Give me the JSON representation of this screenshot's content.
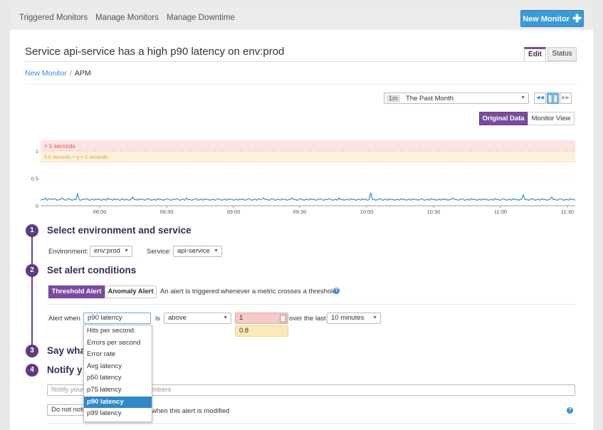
{
  "nav": {
    "tabs": [
      "Triggered Monitors",
      "Manage Monitors",
      "Manage Downtime"
    ],
    "new_monitor_label": "New Monitor"
  },
  "header": {
    "title": "Service api-service has a high p90 latency on env:prod",
    "tab_edit": "Edit",
    "tab_status": "Status"
  },
  "breadcrumb": {
    "link": "New Monitor",
    "sep": "/",
    "current": "APM"
  },
  "time": {
    "badge": "1m",
    "label": "The Past Month"
  },
  "view": {
    "original": "Original Data",
    "monitor": "Monitor View"
  },
  "chart_data": {
    "type": "line",
    "y_ticks": [
      "1",
      "0.5",
      "0"
    ],
    "x_ticks": [
      "08:00",
      "08:30",
      "09:00",
      "09:30",
      "10:00",
      "10:30",
      "11:00",
      "11:30"
    ],
    "ylim": [
      0,
      1.2
    ],
    "alert_band_label": "> 1 seconds",
    "warn_band_label": "0.8 seconds < y < 1 seconds",
    "colors": {
      "line": "#3a8fc6",
      "alert_band": "#fde3e3",
      "warn_band": "#fdf1dc"
    },
    "series": [
      {
        "values": [
          0.1,
          0.12,
          0.11,
          0.14,
          0.1,
          0.13,
          0.12,
          0.11,
          0.13,
          0.12,
          0.1,
          0.11,
          0.12,
          0.14,
          0.11,
          0.1,
          0.12,
          0.13,
          0.11,
          0.1,
          0.12,
          0.11,
          0.22,
          0.11,
          0.1,
          0.12,
          0.11,
          0.13,
          0.12,
          0.1,
          0.11,
          0.12,
          0.1,
          0.13,
          0.11,
          0.12,
          0.1,
          0.11,
          0.12,
          0.1,
          0.14,
          0.11,
          0.12,
          0.1,
          0.13,
          0.11,
          0.12,
          0.1,
          0.11,
          0.13,
          0.1,
          0.12,
          0.11,
          0.1,
          0.12,
          0.16,
          0.11,
          0.12,
          0.1,
          0.13,
          0.11,
          0.12,
          0.1,
          0.11,
          0.13,
          0.12,
          0.1,
          0.11,
          0.12,
          0.1,
          0.13,
          0.11,
          0.12,
          0.1,
          0.11,
          0.12,
          0.13,
          0.11,
          0.1,
          0.12,
          0.11,
          0.13,
          0.12,
          0.1,
          0.11,
          0.12,
          0.1,
          0.14,
          0.11,
          0.12,
          0.1,
          0.11,
          0.12,
          0.13,
          0.1,
          0.11,
          0.12,
          0.1,
          0.13,
          0.11,
          0.12,
          0.1,
          0.11,
          0.12,
          0.1,
          0.11,
          0.13,
          0.12,
          0.1,
          0.11,
          0.12,
          0.1,
          0.13,
          0.11,
          0.12,
          0.1,
          0.11,
          0.12,
          0.1,
          0.13,
          0.11,
          0.12,
          0.1,
          0.11,
          0.13,
          0.12,
          0.1,
          0.11,
          0.12,
          0.1,
          0.13,
          0.11,
          0.12,
          0.14,
          0.11,
          0.12,
          0.1,
          0.11,
          0.13,
          0.12,
          0.1,
          0.11,
          0.12,
          0.1,
          0.13,
          0.11,
          0.12,
          0.1,
          0.11,
          0.12,
          0.14,
          0.11,
          0.12,
          0.1,
          0.11,
          0.13,
          0.12,
          0.1,
          0.11,
          0.12,
          0.1,
          0.13,
          0.11,
          0.12,
          0.1,
          0.11,
          0.12,
          0.13,
          0.11,
          0.1,
          0.12,
          0.11,
          0.13,
          0.12,
          0.1,
          0.11,
          0.12,
          0.1,
          0.14,
          0.11,
          0.12,
          0.1,
          0.11,
          0.12,
          0.1,
          0.13,
          0.11,
          0.12,
          0.1,
          0.11,
          0.12,
          0.1,
          0.13,
          0.11,
          0.12,
          0.1,
          0.11,
          0.24,
          0.11,
          0.12,
          0.1,
          0.11,
          0.13,
          0.12,
          0.1,
          0.11,
          0.12,
          0.1,
          0.13,
          0.11,
          0.12,
          0.1,
          0.11,
          0.12,
          0.1,
          0.13,
          0.11,
          0.12,
          0.1,
          0.11,
          0.12,
          0.1,
          0.13,
          0.11,
          0.12,
          0.1,
          0.11,
          0.13,
          0.12,
          0.1,
          0.11,
          0.12,
          0.1,
          0.13,
          0.11,
          0.12,
          0.1,
          0.11,
          0.12,
          0.1,
          0.13,
          0.11,
          0.12,
          0.1,
          0.11,
          0.12,
          0.14,
          0.11,
          0.12,
          0.1,
          0.11,
          0.13,
          0.12,
          0.1,
          0.11,
          0.12,
          0.1,
          0.13,
          0.11,
          0.12,
          0.1,
          0.11,
          0.12,
          0.1,
          0.13,
          0.11,
          0.12,
          0.1,
          0.11,
          0.12,
          0.1,
          0.13,
          0.11,
          0.12,
          0.1,
          0.11,
          0.13,
          0.12,
          0.1,
          0.11,
          0.12,
          0.1,
          0.13,
          0.11,
          0.12,
          0.1,
          0.11,
          0.12,
          0.2,
          0.11,
          0.12,
          0.1,
          0.11,
          0.13,
          0.12,
          0.1,
          0.11,
          0.12,
          0.1,
          0.13,
          0.11,
          0.12,
          0.1,
          0.11,
          0.12,
          0.16,
          0.11,
          0.12,
          0.1,
          0.11,
          0.13,
          0.12,
          0.1,
          0.11,
          0.12,
          0.1,
          0.13,
          0.11,
          0.12,
          0.1
        ]
      }
    ]
  },
  "steps": [
    {
      "num": "1",
      "title": "Select environment and service"
    },
    {
      "num": "2",
      "title": "Set alert conditions"
    },
    {
      "num": "3",
      "title": "Say wha"
    },
    {
      "num": "4",
      "title": "Notify y"
    }
  ],
  "env": {
    "label": "Environment:",
    "value": "env:prod"
  },
  "service": {
    "label": "Service:",
    "value": "api-service"
  },
  "alert_type": {
    "threshold": "Threshold Alert",
    "anomaly": "Anomaly Alert",
    "desc": "An alert is triggered whenever a metric crosses a threshold."
  },
  "alert_when": {
    "label": "Alert when",
    "metric": "p90 latency",
    "is_label": "is",
    "comparator": "above",
    "alert_threshold": "1",
    "warn_threshold": "0.8",
    "over_label": "over the last",
    "window": "10 minutes"
  },
  "metric_options": [
    "Hits per second",
    "Errors per second",
    "Error rate",
    "Avg latency",
    "p50 latency",
    "p75 latency",
    "p90 latency",
    "p99 latency"
  ],
  "metric_selected": "p90 latency",
  "notify": {
    "placeholder_left": "Notify your t",
    "placeholder_right": "mbers",
    "modify_select": "Do not noti",
    "modify_text": "when this alert is modified"
  }
}
